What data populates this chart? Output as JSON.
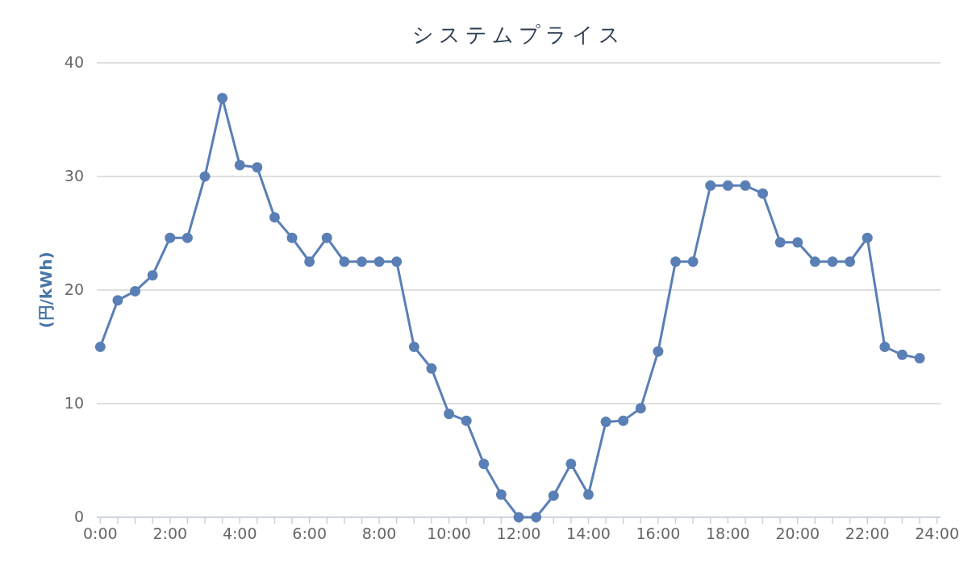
{
  "chart_data": {
    "type": "line",
    "title": "システムプライス",
    "ylabel": "(円/kWh)",
    "x": [
      0,
      0.5,
      1,
      1.5,
      2,
      2.5,
      3,
      3.5,
      4,
      4.5,
      5,
      5.5,
      6,
      6.5,
      7,
      7.5,
      8,
      8.5,
      9,
      9.5,
      10,
      10.5,
      11,
      11.5,
      12,
      12.5,
      13,
      13.5,
      14,
      14.5,
      15,
      15.5,
      16,
      16.5,
      17,
      17.5,
      18,
      18.5,
      19,
      19.5,
      20,
      20.5,
      21,
      21.5,
      22,
      22.5,
      23,
      23.5
    ],
    "series": [
      {
        "color": "#5a7fb5",
        "values": [
          15.0,
          19.1,
          19.9,
          21.3,
          24.6,
          24.6,
          30.0,
          36.9,
          31.0,
          30.8,
          26.4,
          24.6,
          22.5,
          24.6,
          22.5,
          22.5,
          22.5,
          22.5,
          15.0,
          13.1,
          9.1,
          8.5,
          4.7,
          2.0,
          0,
          0,
          1.9,
          4.7,
          2.0,
          8.4,
          8.5,
          9.6,
          14.6,
          22.5,
          22.5,
          29.2,
          29.2,
          29.2,
          28.5,
          24.2,
          24.2,
          22.5,
          22.5,
          22.5,
          24.6,
          15.0,
          14.3,
          14.0
        ]
      }
    ],
    "xlim": [
      -0.1,
      24.1
    ],
    "xticks": [
      {
        "value": 0,
        "label": "0:00"
      },
      {
        "value": 0.5,
        "label": null
      },
      {
        "value": 1,
        "label": null
      },
      {
        "value": 1.5,
        "label": null
      },
      {
        "value": 2,
        "label": "2:00"
      },
      {
        "value": 2.5,
        "label": null
      },
      {
        "value": 3,
        "label": null
      },
      {
        "value": 3.5,
        "label": null
      },
      {
        "value": 4,
        "label": "4:00"
      },
      {
        "value": 4.5,
        "label": null
      },
      {
        "value": 5,
        "label": null
      },
      {
        "value": 5.5,
        "label": null
      },
      {
        "value": 6,
        "label": "6:00"
      },
      {
        "value": 6.5,
        "label": null
      },
      {
        "value": 7,
        "label": null
      },
      {
        "value": 7.5,
        "label": null
      },
      {
        "value": 8,
        "label": "8:00"
      },
      {
        "value": 8.5,
        "label": null
      },
      {
        "value": 9,
        "label": null
      },
      {
        "value": 9.5,
        "label": null
      },
      {
        "value": 10,
        "label": "10:00"
      },
      {
        "value": 10.5,
        "label": null
      },
      {
        "value": 11,
        "label": null
      },
      {
        "value": 11.5,
        "label": null
      },
      {
        "value": 12,
        "label": "12:00"
      },
      {
        "value": 12.5,
        "label": null
      },
      {
        "value": 13,
        "label": null
      },
      {
        "value": 13.5,
        "label": null
      },
      {
        "value": 14,
        "label": "14:00"
      },
      {
        "value": 14.5,
        "label": null
      },
      {
        "value": 15,
        "label": null
      },
      {
        "value": 15.5,
        "label": null
      },
      {
        "value": 16,
        "label": "16:00"
      },
      {
        "value": 16.5,
        "label": null
      },
      {
        "value": 17,
        "label": null
      },
      {
        "value": 17.5,
        "label": null
      },
      {
        "value": 18,
        "label": "18:00"
      },
      {
        "value": 18.5,
        "label": null
      },
      {
        "value": 19,
        "label": null
      },
      {
        "value": 19.5,
        "label": null
      },
      {
        "value": 20,
        "label": "20:00"
      },
      {
        "value": 20.5,
        "label": null
      },
      {
        "value": 21,
        "label": null
      },
      {
        "value": 21.5,
        "label": null
      },
      {
        "value": 22,
        "label": "22:00"
      },
      {
        "value": 22.5,
        "label": null
      },
      {
        "value": 23,
        "label": null
      },
      {
        "value": 23.5,
        "label": null
      },
      {
        "value": 24,
        "label": "24:00"
      }
    ],
    "ylim": [
      0,
      40
    ],
    "yticks": [
      0,
      10,
      20,
      30,
      40
    ],
    "grid": "y",
    "marker": "circle"
  }
}
